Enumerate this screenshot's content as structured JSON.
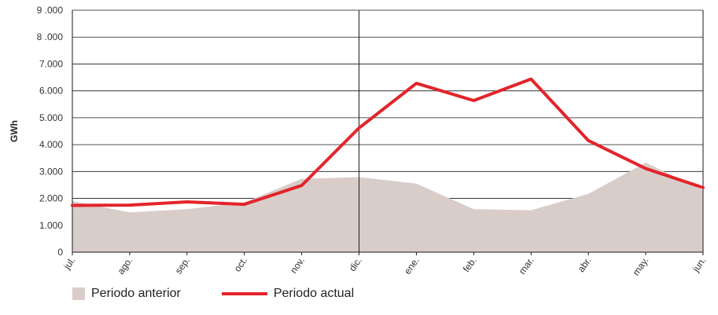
{
  "chart_data": {
    "type": "area",
    "categories": [
      "jul.",
      "ago.",
      "sep.",
      "oct.",
      "nov.",
      "dic.",
      "ene.",
      "feb.",
      "mar.",
      "abr.",
      "may.",
      "jun."
    ],
    "ylabel": "GWh",
    "ylim": [
      0,
      9000
    ],
    "ytick_labels": [
      "0",
      "1.000",
      "2.000",
      "3.000",
      "4.000",
      "5.000",
      "6.000",
      "7.000",
      "8 .000",
      "9 .000"
    ],
    "grid": true,
    "divider_after_category": "dic.",
    "legend_position": "bottom-left",
    "series": [
      {
        "name": "Periodo anterior",
        "type": "area",
        "color": "#d9cdca",
        "values": [
          1900,
          1480,
          1600,
          1850,
          2730,
          2790,
          2550,
          1600,
          1560,
          2170,
          3330,
          2300
        ]
      },
      {
        "name": "Periodo actual",
        "type": "line",
        "color": "#e3242b",
        "values": [
          1740,
          1750,
          1870,
          1780,
          2480,
          4620,
          6280,
          5640,
          6440,
          4150,
          3110,
          2400
        ]
      }
    ]
  }
}
